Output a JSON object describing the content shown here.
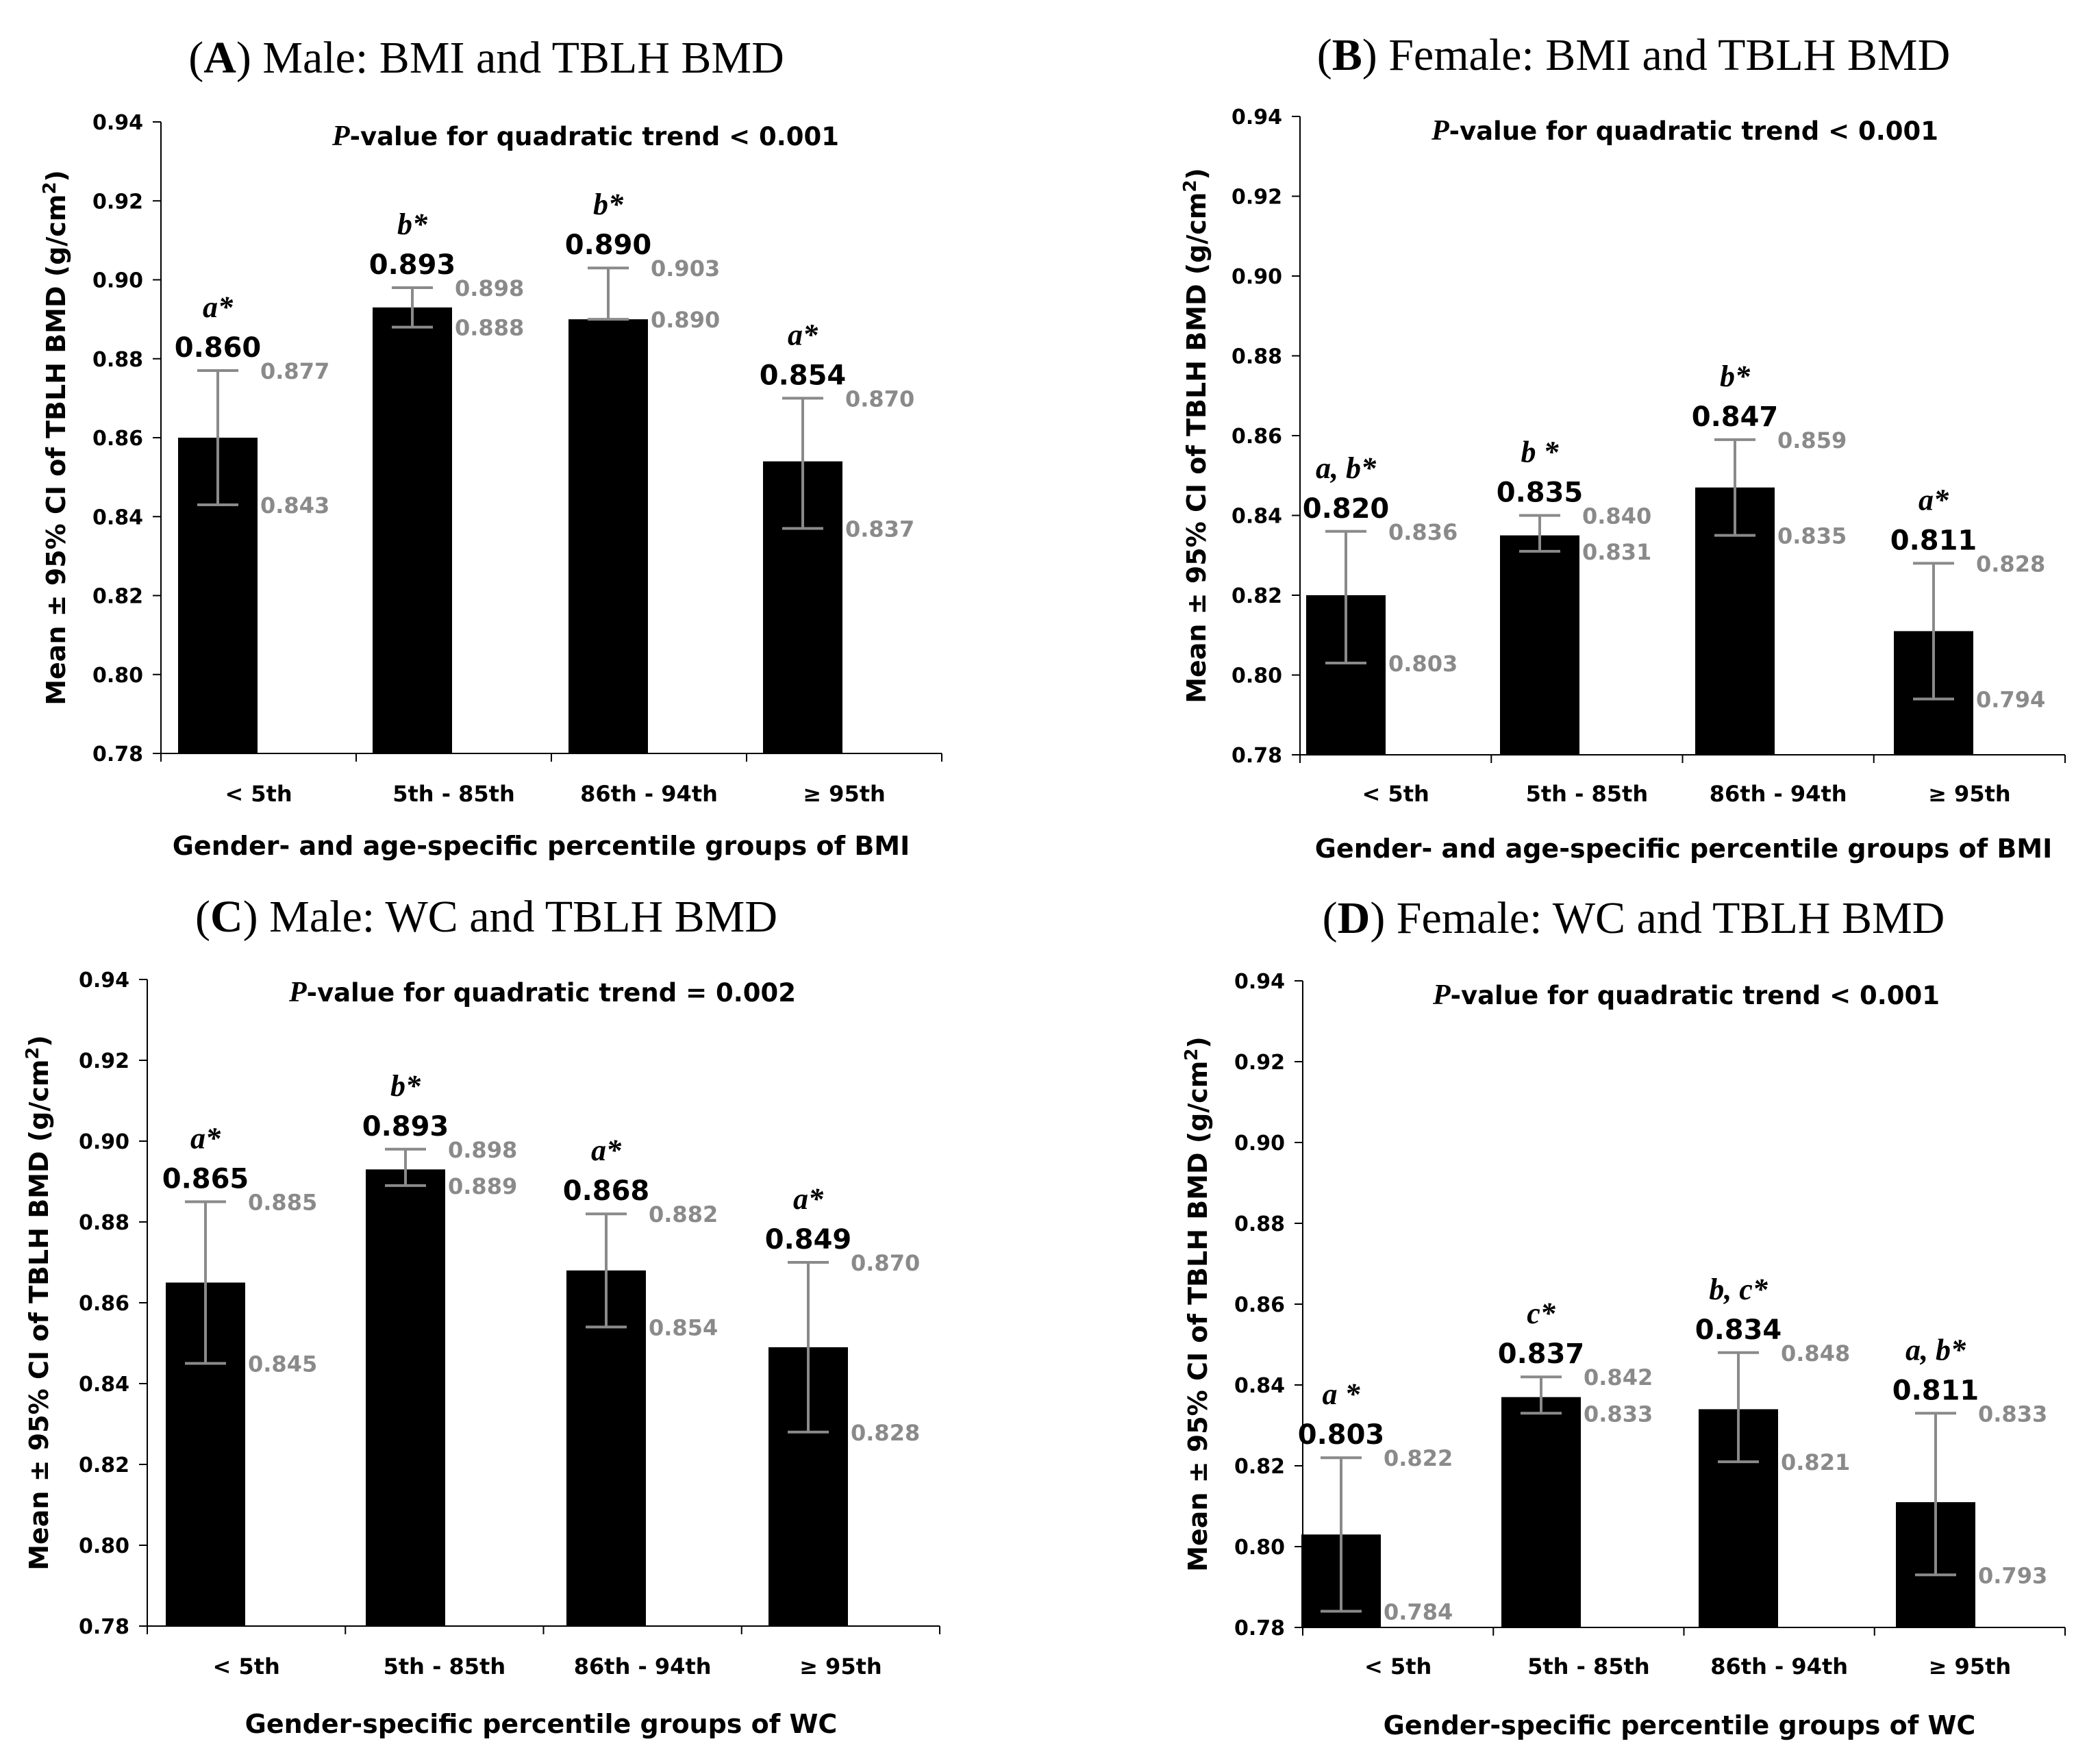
{
  "figure": {
    "chart_data": [
      {
        "type": "bar",
        "title_letter": "A",
        "title": "Male: BMI and TBLH BMD",
        "p_prefix": "P",
        "p_text": "-value for quadratic trend  <  0.001",
        "ylabel_main": "Mean ± 95% CI of TBLH BMD (g/cm",
        "ylabel_sup": "2",
        "ylabel_end": ")",
        "xlabel": "Gender- and age-specific percentile groups of BMI",
        "ylim": [
          0.78,
          0.94
        ],
        "yticks": [
          "0.78",
          "0.80",
          "0.82",
          "0.84",
          "0.86",
          "0.88",
          "0.90",
          "0.92",
          "0.94"
        ],
        "categories": [
          "<  5th",
          "5th  -  85th",
          "86th  -  94th",
          "≥  95th"
        ],
        "values": [
          0.86,
          0.893,
          0.89,
          0.854
        ],
        "mean_labels": [
          "0.860",
          "0.893",
          "0.890",
          "0.854"
        ],
        "upper": [
          0.877,
          0.898,
          0.903,
          0.87
        ],
        "lower": [
          0.843,
          0.888,
          0.89,
          0.837
        ],
        "upper_labels": [
          "0.877",
          "0.898",
          "0.903",
          "0.870"
        ],
        "lower_labels": [
          "0.843",
          "0.888",
          "0.890",
          "0.837"
        ],
        "sig_labels": [
          "a*",
          "b*",
          "b*",
          "a*"
        ]
      },
      {
        "type": "bar",
        "title_letter": "B",
        "title": "Female: BMI and TBLH BMD",
        "p_prefix": "P",
        "p_text": "-value for quadratic trend  <  0.001",
        "ylabel_main": "Mean ± 95% CI of TBLH BMD (g/cm",
        "ylabel_sup": "2",
        "ylabel_end": ")",
        "xlabel": "Gender- and age-specific percentile groups of BMI",
        "ylim": [
          0.78,
          0.94
        ],
        "yticks": [
          "0.78",
          "0.80",
          "0.82",
          "0.84",
          "0.86",
          "0.88",
          "0.90",
          "0.92",
          "0.94"
        ],
        "categories": [
          "<  5th",
          "5th  -  85th",
          "86th  -  94th",
          "≥  95th"
        ],
        "values": [
          0.82,
          0.835,
          0.847,
          0.811
        ],
        "mean_labels": [
          "0.820",
          "0.835",
          "0.847",
          "0.811"
        ],
        "upper": [
          0.836,
          0.84,
          0.859,
          0.828
        ],
        "lower": [
          0.803,
          0.831,
          0.835,
          0.794
        ],
        "upper_labels": [
          "0.836",
          "0.840",
          "0.859",
          "0.828"
        ],
        "lower_labels": [
          "0.803",
          "0.831",
          "0.835",
          "0.794"
        ],
        "sig_labels": [
          "a, b*",
          "b *",
          "b*",
          "a*"
        ]
      },
      {
        "type": "bar",
        "title_letter": "C",
        "title": "Male: WC and TBLH BMD",
        "p_prefix": "P",
        "p_text": "-value for quadratic trend  =  0.002",
        "ylabel_main": "Mean ± 95% CI of TBLH BMD (g/cm",
        "ylabel_sup": "2",
        "ylabel_end": ")",
        "xlabel": "Gender-specific percentile groups of WC",
        "ylim": [
          0.78,
          0.94
        ],
        "yticks": [
          "0.78",
          "0.80",
          "0.82",
          "0.84",
          "0.86",
          "0.88",
          "0.90",
          "0.92",
          "0.94"
        ],
        "categories": [
          "<  5th",
          "5th  -  85th",
          "86th  -  94th",
          "≥  95th"
        ],
        "values": [
          0.865,
          0.893,
          0.868,
          0.849
        ],
        "mean_labels": [
          "0.865",
          "0.893",
          "0.868",
          "0.849"
        ],
        "upper": [
          0.885,
          0.898,
          0.882,
          0.87
        ],
        "lower": [
          0.845,
          0.889,
          0.854,
          0.828
        ],
        "upper_labels": [
          "0.885",
          "0.898",
          "0.882",
          "0.870"
        ],
        "lower_labels": [
          "0.845",
          "0.889",
          "0.854",
          "0.828"
        ],
        "sig_labels": [
          "a*",
          "b*",
          "a*",
          "a*"
        ]
      },
      {
        "type": "bar",
        "title_letter": "D",
        "title": "Female: WC and TBLH BMD",
        "p_prefix": "P",
        "p_text": "-value for quadratic trend  <  0.001",
        "ylabel_main": "Mean ± 95% CI of TBLH BMD (g/cm",
        "ylabel_sup": "2",
        "ylabel_end": ")",
        "xlabel": "Gender-specific percentile groups of WC",
        "ylim": [
          0.78,
          0.94
        ],
        "yticks": [
          "0.78",
          "0.80",
          "0.82",
          "0.84",
          "0.86",
          "0.88",
          "0.90",
          "0.92",
          "0.94"
        ],
        "categories": [
          "<  5th",
          "5th  -  85th",
          "86th  -  94th",
          "≥  95th"
        ],
        "values": [
          0.803,
          0.837,
          0.834,
          0.811
        ],
        "mean_labels": [
          "0.803",
          "0.837",
          "0.834",
          "0.811"
        ],
        "upper": [
          0.822,
          0.842,
          0.848,
          0.833
        ],
        "lower": [
          0.784,
          0.833,
          0.821,
          0.793
        ],
        "upper_labels": [
          "0.822",
          "0.842",
          "0.848",
          "0.833"
        ],
        "lower_labels": [
          "0.784",
          "0.833",
          "0.821",
          "0.793"
        ],
        "sig_labels": [
          "a *",
          "c*",
          "b, c*",
          "a, b*"
        ]
      }
    ]
  }
}
